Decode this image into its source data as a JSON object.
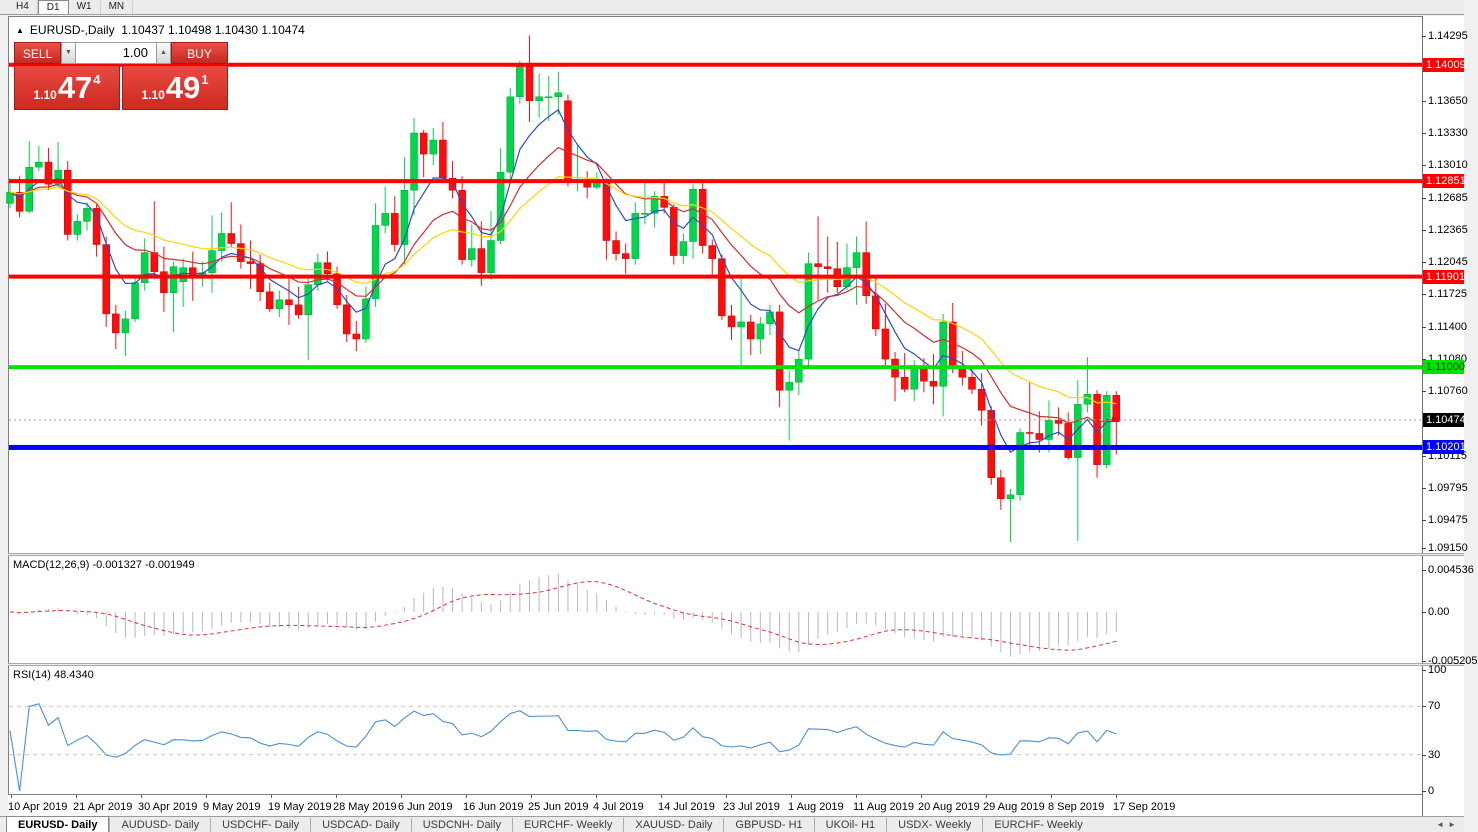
{
  "toolbar": {
    "timeframes": [
      {
        "label": "H4",
        "active": false
      },
      {
        "label": "D1",
        "active": true
      },
      {
        "label": "W1",
        "active": false
      },
      {
        "label": "MN",
        "active": false
      }
    ]
  },
  "chart_header": {
    "collapse_icon": "▲",
    "title": "EURUSD-,Daily",
    "ohlc": "1.10437 1.10498 1.10430 1.10474"
  },
  "trade_panel": {
    "sell_label": "SELL",
    "buy_label": "BUY",
    "volume": "1.00",
    "spin_down_icon": "▼",
    "spin_up_icon": "▲",
    "sell_price": {
      "prefix": "1.10",
      "big": "47",
      "sup": "4"
    },
    "buy_price": {
      "prefix": "1.10",
      "big": "49",
      "sup": "1"
    }
  },
  "macd_panel": {
    "label": "MACD(12,26,9) -0.001327 -0.001949",
    "scale": [
      "0.004536",
      "0.00",
      "-0.005205"
    ]
  },
  "rsi_panel": {
    "label": "RSI(14) 48.4340",
    "scale": [
      "100",
      "70",
      "30",
      "0"
    ]
  },
  "tabs": {
    "scroll_left_icon": "◄",
    "scroll_right_icon": "►",
    "items": [
      {
        "label": "EURUSD- Daily",
        "active": true
      },
      {
        "label": "AUDUSD- Daily",
        "active": false
      },
      {
        "label": "USDCHF- Daily",
        "active": false
      },
      {
        "label": "USDCAD- Daily",
        "active": false
      },
      {
        "label": "USDCNH- Daily",
        "active": false
      },
      {
        "label": "EURCHF- Weekly",
        "active": false
      },
      {
        "label": "XAUUSD- Daily",
        "active": false
      },
      {
        "label": "GBPUSD- H1",
        "active": false
      },
      {
        "label": "UKOil- H1",
        "active": false
      },
      {
        "label": "USDX- Weekly",
        "active": false
      },
      {
        "label": "EURCHF- Weekly",
        "active": false
      }
    ]
  },
  "chart_data": {
    "type": "candlestick",
    "symbol": "EURUSD-",
    "period": "Daily",
    "y_ticks": [
      "1.14295",
      "1.13650",
      "1.13330",
      "1.13010",
      "1.12685",
      "1.12365",
      "1.12045",
      "1.11725",
      "1.11400",
      "1.11080",
      "1.10760",
      "1.10115",
      "1.09795",
      "1.09475",
      "1.09150"
    ],
    "levels": [
      {
        "price": 1.14009,
        "label": "1.14009",
        "color": "#ff0000",
        "thickness": 4,
        "badge_bg": "#ff0000",
        "badge_fg": "#ffffff"
      },
      {
        "price": 1.12851,
        "label": "1.12851",
        "color": "#ff0000",
        "thickness": 4,
        "badge_bg": "#ff0000",
        "badge_fg": "#ffffff"
      },
      {
        "price": 1.11901,
        "label": "1.11901",
        "color": "#ff0000",
        "thickness": 4,
        "badge_bg": "#ff0000",
        "badge_fg": "#ffffff"
      },
      {
        "price": 1.11,
        "label": "1.11000",
        "color": "#00e400",
        "thickness": 4,
        "badge_bg": "#00e400",
        "badge_fg": "#004000"
      },
      {
        "price": 1.10201,
        "label": "1.10201",
        "color": "#0000ff",
        "thickness": 5,
        "badge_bg": "#0000ff",
        "badge_fg": "#ffffff"
      }
    ],
    "current_price": {
      "value": 1.10474,
      "label": "1.10474",
      "line_color": "#9b9b9b",
      "badge_bg": "#000000",
      "badge_fg": "#ffffff",
      "marker_color": "#ff0000"
    },
    "colors": {
      "up": "#00d64a",
      "up_border": "#00a53a",
      "down": "#fe0d0d",
      "down_border": "#c40000"
    },
    "indicators": {
      "ma": [
        {
          "period": 6,
          "color": "#2b4bc8"
        },
        {
          "period": 14,
          "color": "#d92b2b"
        },
        {
          "period": 24,
          "color": "#ffd400"
        }
      ],
      "macd": {
        "fast": 12,
        "slow": 26,
        "signal_period": 9,
        "hist_color": "#b8b8b8",
        "signal_color": "#e03131"
      },
      "rsi": {
        "period": 14,
        "color": "#4a90d9",
        "levels": [
          70,
          30
        ],
        "level_color": "#c4c4c4"
      }
    },
    "date_labels": [
      "10 Apr 2019",
      "21 Apr 2019",
      "30 Apr 2019",
      "9 May 2019",
      "19 May 2019",
      "28 May 2019",
      "6 Jun 2019",
      "16 Jun 2019",
      "25 Jun 2019",
      "4 Jul 2019",
      "14 Jul 2019",
      "23 Jul 2019",
      "1 Aug 2019",
      "11 Aug 2019",
      "20 Aug 2019",
      "29 Aug 2019",
      "8 Sep 2019",
      "17 Sep 2019"
    ],
    "candles": [
      [
        1.1263,
        1.1288,
        1.1258,
        1.1274
      ],
      [
        1.1274,
        1.129,
        1.1249,
        1.1255
      ],
      [
        1.1255,
        1.1325,
        1.1253,
        1.1299
      ],
      [
        1.1299,
        1.132,
        1.1295,
        1.1304
      ],
      [
        1.1304,
        1.1318,
        1.1276,
        1.1282
      ],
      [
        1.1282,
        1.1324,
        1.1278,
        1.1296
      ],
      [
        1.1296,
        1.1305,
        1.1226,
        1.1232
      ],
      [
        1.1232,
        1.1252,
        1.1226,
        1.1245
      ],
      [
        1.1245,
        1.1264,
        1.1236,
        1.1258
      ],
      [
        1.1258,
        1.1262,
        1.121,
        1.1222
      ],
      [
        1.1222,
        1.123,
        1.114,
        1.1153
      ],
      [
        1.1153,
        1.1162,
        1.1118,
        1.1134
      ],
      [
        1.1134,
        1.1156,
        1.1111,
        1.1148
      ],
      [
        1.1148,
        1.119,
        1.1145,
        1.1184
      ],
      [
        1.1184,
        1.1228,
        1.1176,
        1.1214
      ],
      [
        1.1214,
        1.1265,
        1.119,
        1.1195
      ],
      [
        1.1195,
        1.122,
        1.1155,
        1.1174
      ],
      [
        1.1174,
        1.1205,
        1.1135,
        1.12
      ],
      [
        1.1185,
        1.1208,
        1.116,
        1.1199
      ],
      [
        1.1199,
        1.1215,
        1.1166,
        1.1192
      ],
      [
        1.1192,
        1.1205,
        1.118,
        1.1194
      ],
      [
        1.1194,
        1.1251,
        1.1174,
        1.1216
      ],
      [
        1.1216,
        1.1254,
        1.1205,
        1.1233
      ],
      [
        1.1233,
        1.1264,
        1.122,
        1.1223
      ],
      [
        1.1223,
        1.1242,
        1.1198,
        1.1205
      ],
      [
        1.1205,
        1.1226,
        1.1178,
        1.1203
      ],
      [
        1.1203,
        1.1212,
        1.1166,
        1.1175
      ],
      [
        1.1175,
        1.1184,
        1.1155,
        1.1158
      ],
      [
        1.1158,
        1.1176,
        1.115,
        1.1167
      ],
      [
        1.1167,
        1.1188,
        1.1142,
        1.1162
      ],
      [
        1.1162,
        1.118,
        1.1148,
        1.1152
      ],
      [
        1.1152,
        1.1188,
        1.1107,
        1.1182
      ],
      [
        1.1182,
        1.1213,
        1.1176,
        1.1204
      ],
      [
        1.1204,
        1.1215,
        1.1186,
        1.1193
      ],
      [
        1.1193,
        1.12,
        1.1158,
        1.1162
      ],
      [
        1.1162,
        1.1172,
        1.1125,
        1.1133
      ],
      [
        1.1133,
        1.1146,
        1.1116,
        1.1128
      ],
      [
        1.1128,
        1.118,
        1.1124,
        1.1168
      ],
      [
        1.1168,
        1.1263,
        1.116,
        1.1241
      ],
      [
        1.1241,
        1.128,
        1.1233,
        1.1253
      ],
      [
        1.1253,
        1.127,
        1.1215,
        1.1222
      ],
      [
        1.1222,
        1.1309,
        1.1201,
        1.1276
      ],
      [
        1.1276,
        1.1348,
        1.1251,
        1.1333
      ],
      [
        1.1333,
        1.1336,
        1.1289,
        1.1312
      ],
      [
        1.1312,
        1.1338,
        1.1301,
        1.1326
      ],
      [
        1.1326,
        1.1344,
        1.1283,
        1.1288
      ],
      [
        1.1288,
        1.1305,
        1.1268,
        1.1276
      ],
      [
        1.1276,
        1.129,
        1.1202,
        1.1207
      ],
      [
        1.1207,
        1.1242,
        1.12,
        1.1218
      ],
      [
        1.1218,
        1.1245,
        1.1181,
        1.1194
      ],
      [
        1.1194,
        1.1255,
        1.1187,
        1.1226
      ],
      [
        1.1226,
        1.1318,
        1.1222,
        1.1294
      ],
      [
        1.1294,
        1.1378,
        1.1285,
        1.1369
      ],
      [
        1.1369,
        1.1405,
        1.1362,
        1.1399
      ],
      [
        1.1399,
        1.143,
        1.1344,
        1.1365
      ],
      [
        1.1365,
        1.1392,
        1.1348,
        1.1369
      ],
      [
        1.1369,
        1.139,
        1.1345,
        1.1369
      ],
      [
        1.1369,
        1.1394,
        1.1351,
        1.1373
      ],
      [
        1.1365,
        1.1371,
        1.128,
        1.1285
      ],
      [
        1.1285,
        1.1322,
        1.1275,
        1.1285
      ],
      [
        1.1285,
        1.1295,
        1.1268,
        1.1279
      ],
      [
        1.1279,
        1.1294,
        1.1277,
        1.1283
      ],
      [
        1.1283,
        1.1288,
        1.1207,
        1.1226
      ],
      [
        1.1226,
        1.1235,
        1.1206,
        1.1213
      ],
      [
        1.1213,
        1.1223,
        1.1193,
        1.1208
      ],
      [
        1.1208,
        1.1264,
        1.1202,
        1.1253
      ],
      [
        1.1253,
        1.1286,
        1.1242,
        1.1253
      ],
      [
        1.1253,
        1.1275,
        1.1239,
        1.127
      ],
      [
        1.127,
        1.1285,
        1.1253,
        1.1259
      ],
      [
        1.1259,
        1.1262,
        1.1202,
        1.1211
      ],
      [
        1.1211,
        1.1233,
        1.1203,
        1.1225
      ],
      [
        1.1225,
        1.1282,
        1.1208,
        1.1277
      ],
      [
        1.1277,
        1.1283,
        1.1213,
        1.1221
      ],
      [
        1.1221,
        1.1227,
        1.1192,
        1.1208
      ],
      [
        1.1208,
        1.1212,
        1.1147,
        1.1151
      ],
      [
        1.1151,
        1.1162,
        1.1127,
        1.114
      ],
      [
        1.114,
        1.1188,
        1.1101,
        1.1145
      ],
      [
        1.1145,
        1.1152,
        1.1112,
        1.1128
      ],
      [
        1.1128,
        1.115,
        1.1113,
        1.1143
      ],
      [
        1.1143,
        1.1162,
        1.1132,
        1.1155
      ],
      [
        1.1155,
        1.1162,
        1.106,
        1.1077
      ],
      [
        1.1077,
        1.1096,
        1.1027,
        1.1085
      ],
      [
        1.1085,
        1.1116,
        1.1072,
        1.1108
      ],
      [
        1.1108,
        1.1214,
        1.1101,
        1.1203
      ],
      [
        1.1203,
        1.125,
        1.1167,
        1.12
      ],
      [
        1.12,
        1.123,
        1.1174,
        1.1198
      ],
      [
        1.1198,
        1.1225,
        1.1174,
        1.118
      ],
      [
        1.118,
        1.1223,
        1.1177,
        1.1199
      ],
      [
        1.1199,
        1.123,
        1.1162,
        1.1214
      ],
      [
        1.1214,
        1.1245,
        1.1163,
        1.1171
      ],
      [
        1.1171,
        1.1192,
        1.1131,
        1.1138
      ],
      [
        1.1138,
        1.1163,
        1.1102,
        1.1108
      ],
      [
        1.1108,
        1.1115,
        1.1066,
        1.109
      ],
      [
        1.109,
        1.1114,
        1.1075,
        1.1078
      ],
      [
        1.1078,
        1.1107,
        1.1066,
        1.1099
      ],
      [
        1.1099,
        1.1109,
        1.1075,
        1.1086
      ],
      [
        1.1086,
        1.1113,
        1.1063,
        1.1081
      ],
      [
        1.1081,
        1.1153,
        1.1051,
        1.1145
      ],
      [
        1.1145,
        1.1164,
        1.1094,
        1.1101
      ],
      [
        1.1101,
        1.1116,
        1.1082,
        1.109
      ],
      [
        1.109,
        1.1098,
        1.1073,
        1.1078
      ],
      [
        1.1078,
        1.1094,
        1.1042,
        1.1057
      ],
      [
        1.1057,
        1.1061,
        1.0983,
        1.099
      ],
      [
        1.099,
        1.0998,
        1.0958,
        1.0969
      ],
      [
        1.0969,
        1.0979,
        1.0926,
        1.0973
      ],
      [
        1.0973,
        1.1039,
        1.0967,
        1.1035
      ],
      [
        1.1035,
        1.1085,
        1.1022,
        1.1034
      ],
      [
        1.1034,
        1.1056,
        1.1015,
        1.1028
      ],
      [
        1.1028,
        1.1067,
        1.1015,
        1.1047
      ],
      [
        1.1047,
        1.106,
        1.1032,
        1.1044
      ],
      [
        1.1044,
        1.1055,
        1.1008,
        1.101
      ],
      [
        1.101,
        1.1087,
        1.0927,
        1.1063
      ],
      [
        1.1063,
        1.111,
        1.1055,
        1.1073
      ],
      [
        1.1073,
        1.1077,
        1.099,
        1.1003
      ],
      [
        1.1003,
        1.1076,
        1.0999,
        1.1072
      ],
      [
        1.1072,
        1.1076,
        1.1013,
        1.1047
      ]
    ]
  }
}
